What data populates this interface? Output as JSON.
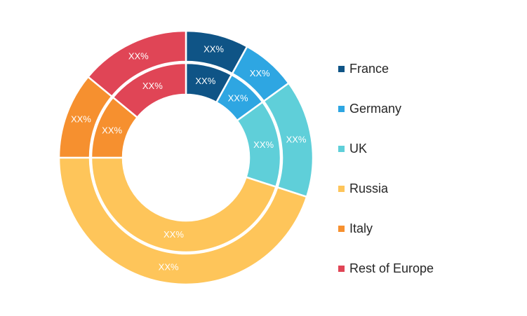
{
  "chart_data": {
    "type": "pie",
    "subtype": "nested-donut",
    "categories": [
      "France",
      "Germany",
      "UK",
      "Russia",
      "Italy",
      "Rest of Europe"
    ],
    "colors": [
      "#0f5486",
      "#2ea6e2",
      "#5fcfd9",
      "#fec55a",
      "#f6902f",
      "#e04556"
    ],
    "series": [
      {
        "ring": "outer",
        "values": [
          8,
          7,
          15,
          45,
          11,
          14
        ],
        "labels": [
          "XX%",
          "XX%",
          "XX%",
          "XX%",
          "XX%",
          "XX%"
        ]
      },
      {
        "ring": "inner",
        "values": [
          8,
          7,
          15,
          45,
          11,
          14
        ],
        "labels": [
          "XX%",
          "XX%",
          "XX%",
          "XX%",
          "XX%",
          "XX%"
        ]
      }
    ],
    "legend_position": "right"
  },
  "legend": {
    "items": [
      {
        "label": "France",
        "color": "#0f5486"
      },
      {
        "label": "Germany",
        "color": "#2ea6e2"
      },
      {
        "label": "UK",
        "color": "#5fcfd9"
      },
      {
        "label": "Russia",
        "color": "#fec55a"
      },
      {
        "label": "Italy",
        "color": "#f6902f"
      },
      {
        "label": "Rest of Europe",
        "color": "#e04556"
      }
    ]
  }
}
